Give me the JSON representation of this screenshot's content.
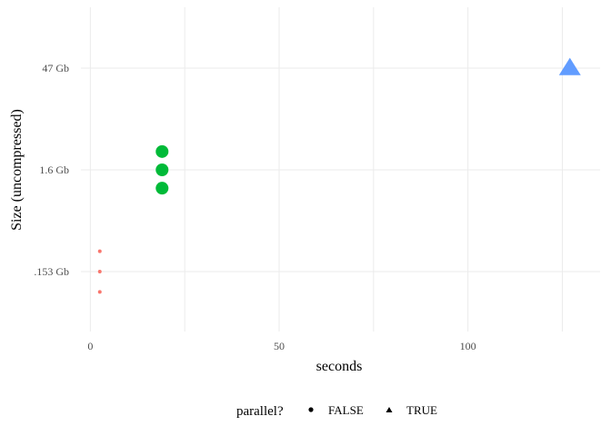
{
  "chart_data": {
    "type": "scatter",
    "title": "",
    "xlabel": "seconds",
    "ylabel": "Size (uncompressed)",
    "xlim": [
      -2.5,
      135
    ],
    "y_categories": [
      ".153 Gb",
      "1.6 Gb",
      "47 Gb"
    ],
    "x_ticks": [
      {
        "value": 0,
        "label": "0"
      },
      {
        "value": 50,
        "label": "50"
      },
      {
        "value": 100,
        "label": "100"
      }
    ],
    "grid": true,
    "legend": {
      "title": "parallel?",
      "position": "bottom",
      "entries": [
        {
          "label": "FALSE",
          "shape": "circle"
        },
        {
          "label": "TRUE",
          "shape": "triangle"
        }
      ]
    },
    "points": [
      {
        "x": 2.5,
        "y": ".153 Gb",
        "offset": 0.2,
        "parallel": "FALSE",
        "color": "#F8766D",
        "size": 2
      },
      {
        "x": 2.5,
        "y": ".153 Gb",
        "offset": 0.0,
        "parallel": "FALSE",
        "color": "#F8766D",
        "size": 2
      },
      {
        "x": 2.5,
        "y": ".153 Gb",
        "offset": -0.2,
        "parallel": "FALSE",
        "color": "#F8766D",
        "size": 2
      },
      {
        "x": 19,
        "y": "1.6 Gb",
        "offset": 0.18,
        "parallel": "FALSE",
        "color": "#00BA38",
        "size": 7
      },
      {
        "x": 19,
        "y": "1.6 Gb",
        "offset": 0.0,
        "parallel": "FALSE",
        "color": "#00BA38",
        "size": 7
      },
      {
        "x": 19,
        "y": "1.6 Gb",
        "offset": -0.18,
        "parallel": "FALSE",
        "color": "#00BA38",
        "size": 7
      },
      {
        "x": 127,
        "y": "47 Gb",
        "offset": 0.0,
        "parallel": "TRUE",
        "color": "#619CFF",
        "size": 12
      }
    ]
  }
}
